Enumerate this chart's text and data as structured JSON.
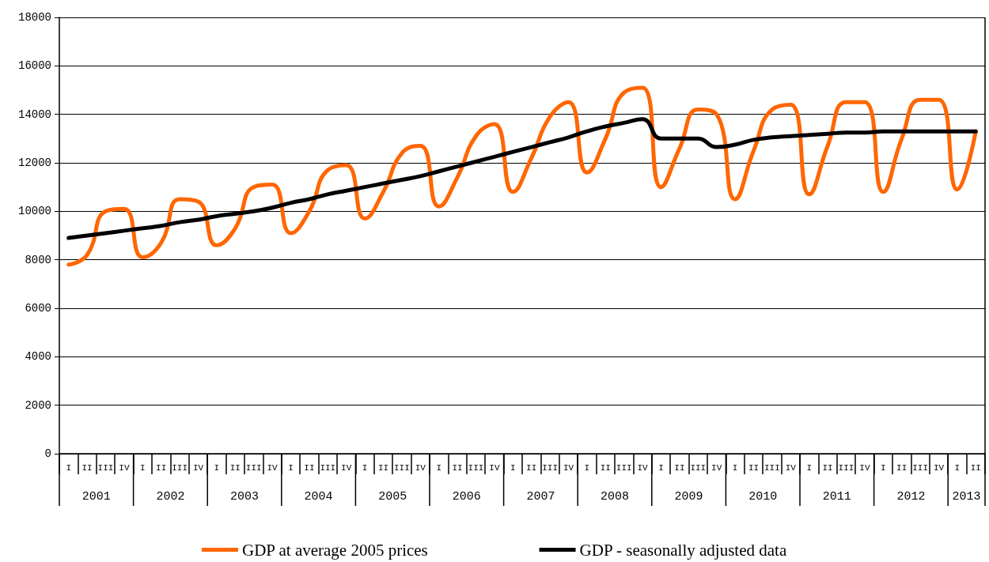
{
  "chart_data": {
    "type": "line",
    "categories": [
      "I",
      "II",
      "III",
      "IV",
      "I",
      "II",
      "III",
      "IV",
      "I",
      "II",
      "III",
      "IV",
      "I",
      "II",
      "III",
      "IV",
      "I",
      "II",
      "III",
      "IV",
      "I",
      "II",
      "III",
      "IV",
      "I",
      "II",
      "III",
      "IV",
      "I",
      "II",
      "III",
      "IV",
      "I",
      "II",
      "III",
      "IV",
      "I",
      "II",
      "III",
      "IV",
      "I",
      "II",
      "III",
      "IV",
      "I",
      "II",
      "III",
      "IV",
      "I",
      "II"
    ],
    "series": [
      {
        "name": "GDP at average 2005 prices",
        "color": "#ff6600",
        "values": [
          7800,
          8200,
          10000,
          10100,
          8100,
          8700,
          10500,
          10400,
          8600,
          9300,
          11000,
          11100,
          9100,
          10000,
          11700,
          11900,
          9700,
          10800,
          12400,
          12700,
          10200,
          11400,
          13100,
          13600,
          10800,
          12200,
          13900,
          14500,
          11600,
          13000,
          14900,
          15100,
          11000,
          12600,
          14200,
          14000,
          10500,
          12500,
          14200,
          14400,
          10700,
          12700,
          14500,
          14500,
          10800,
          13000,
          14600,
          14600,
          10900,
          13300
        ]
      },
      {
        "name": "GDP - seasonally adjusted data",
        "color": "#000000",
        "values": [
          8900,
          9000,
          9100,
          9200,
          9300,
          9400,
          9550,
          9650,
          9800,
          9900,
          10000,
          10150,
          10350,
          10500,
          10700,
          10850,
          11000,
          11150,
          11300,
          11450,
          11650,
          11850,
          12050,
          12250,
          12450,
          12650,
          12850,
          13050,
          13300,
          13500,
          13650,
          13800,
          13000,
          13000,
          13000,
          12650,
          12750,
          12950,
          13050,
          13100,
          13150,
          13200,
          13250,
          13250,
          13300,
          13300,
          13300,
          13300,
          13300,
          13300
        ]
      }
    ],
    "annotations": [
      "2001",
      "2002",
      "2003",
      "2004",
      "2005",
      "2006",
      "2007",
      "2008",
      "2009",
      "2010",
      "2011",
      "2012",
      "2013"
    ],
    "ylim": [
      0,
      18000
    ],
    "yticks": [
      0,
      2000,
      4000,
      6000,
      8000,
      10000,
      12000,
      14000,
      16000,
      18000
    ],
    "grid": "y",
    "legend": "bottom",
    "marker": "none",
    "line_style": "solid"
  }
}
